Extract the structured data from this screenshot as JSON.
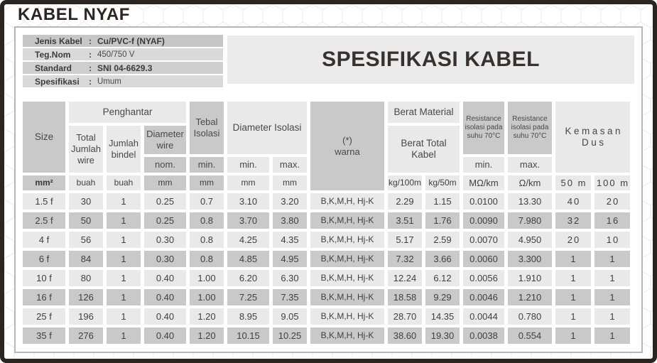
{
  "page_title": "KABEL NYAF",
  "banner": {
    "title": "SPESIFIKASI KABEL"
  },
  "info_panel": {
    "rows": [
      {
        "label": "Jenis Kabel",
        "separator": ":",
        "value": "Cu/PVC-f (NYAF)"
      },
      {
        "label": "Teg.Nom",
        "separator": ":",
        "value": "450/750 V"
      },
      {
        "label": "Standard",
        "separator": ":",
        "value": "SNI 04-6629.3"
      },
      {
        "label": "Spesifikasi",
        "separator": ":",
        "value": "Umum"
      }
    ]
  },
  "table": {
    "header": {
      "size": "Size",
      "penghantar": "Penghantar",
      "total_jumlah_wire": "Total Jumlah wire",
      "jumlah_bindel": "Jumlah bindel",
      "diameter_wire": "Diameter wire",
      "diameter_wire_nom": "nom.",
      "tebal_isolasi": "Tebal Isolasi",
      "tebal_isolasi_min": "min.",
      "diameter_isolasi": "Diameter Isolasi",
      "diameter_isolasi_min": "min.",
      "diameter_isolasi_max": "max.",
      "warna_top": "(*)",
      "warna_bottom": "warna",
      "berat_material": "Berat Material",
      "berat_total_kabel": "Berat Total Kabel",
      "resistance_min_title": "Resistance isolasi pada suhu 70°C",
      "resistance_min": "min.",
      "resistance_max_title": "Resistance isolasi pada suhu 70°C",
      "resistance_max": "max.",
      "kemasan_top": "Kemasan",
      "kemasan_bottom": "Dus"
    },
    "units": {
      "size": "mm²",
      "total_jumlah_wire": "buah",
      "jumlah_bindel": "buah",
      "diameter_wire": "mm",
      "tebal_isolasi": "mm",
      "diameter_isolasi_min": "mm",
      "diameter_isolasi_max": "mm",
      "berat_100m": "kg/100m",
      "berat_50m": "kg/50m",
      "resistance_min": "MΩ/km",
      "resistance_max": "Ω/km",
      "kemasan_50m": "50 m",
      "kemasan_100m": "100 m"
    },
    "rows": [
      [
        "1.5 f",
        "30",
        "1",
        "0.25",
        "0.7",
        "3.10",
        "3.20",
        "B,K,M,H, Hj-K",
        "2.29",
        "1.15",
        "0.0100",
        "13.30",
        "40",
        "20"
      ],
      [
        "2.5 f",
        "50",
        "1",
        "0.25",
        "0.8",
        "3.70",
        "3.80",
        "B,K,M,H, Hj-K",
        "3.51",
        "1.76",
        "0.0090",
        "7.980",
        "32",
        "16"
      ],
      [
        "4 f",
        "56",
        "1",
        "0.30",
        "0.8",
        "4.25",
        "4.35",
        "B,K,M,H, Hj-K",
        "5.17",
        "2.59",
        "0.0070",
        "4.950",
        "20",
        "10"
      ],
      [
        "6 f",
        "84",
        "1",
        "0.30",
        "0.8",
        "4.85",
        "4.95",
        "B,K,M,H, Hj-K",
        "7.32",
        "3.66",
        "0.0060",
        "3.300",
        "1",
        "1"
      ],
      [
        "10 f",
        "80",
        "1",
        "0.40",
        "1.00",
        "6.20",
        "6.30",
        "B,K,M,H, Hj-K",
        "12.24",
        "6.12",
        "0.0056",
        "1.910",
        "1",
        "1"
      ],
      [
        "16 f",
        "126",
        "1",
        "0.40",
        "1.00",
        "7.25",
        "7.35",
        "B,K,M,H, Hj-K",
        "18.58",
        "9.29",
        "0.0046",
        "1.210",
        "1",
        "1"
      ],
      [
        "25 f",
        "196",
        "1",
        "0.40",
        "1.20",
        "8.95",
        "9.05",
        "B,K,M,H, Hj-K",
        "28.70",
        "14.35",
        "0.0044",
        "0.780",
        "1",
        "1"
      ],
      [
        "35 f",
        "276",
        "1",
        "0.40",
        "1.20",
        "10.15",
        "10.25",
        "B,K,M,H, Hj-K",
        "38.60",
        "19.30",
        "0.0038",
        "0.554",
        "1",
        "1"
      ]
    ]
  }
}
